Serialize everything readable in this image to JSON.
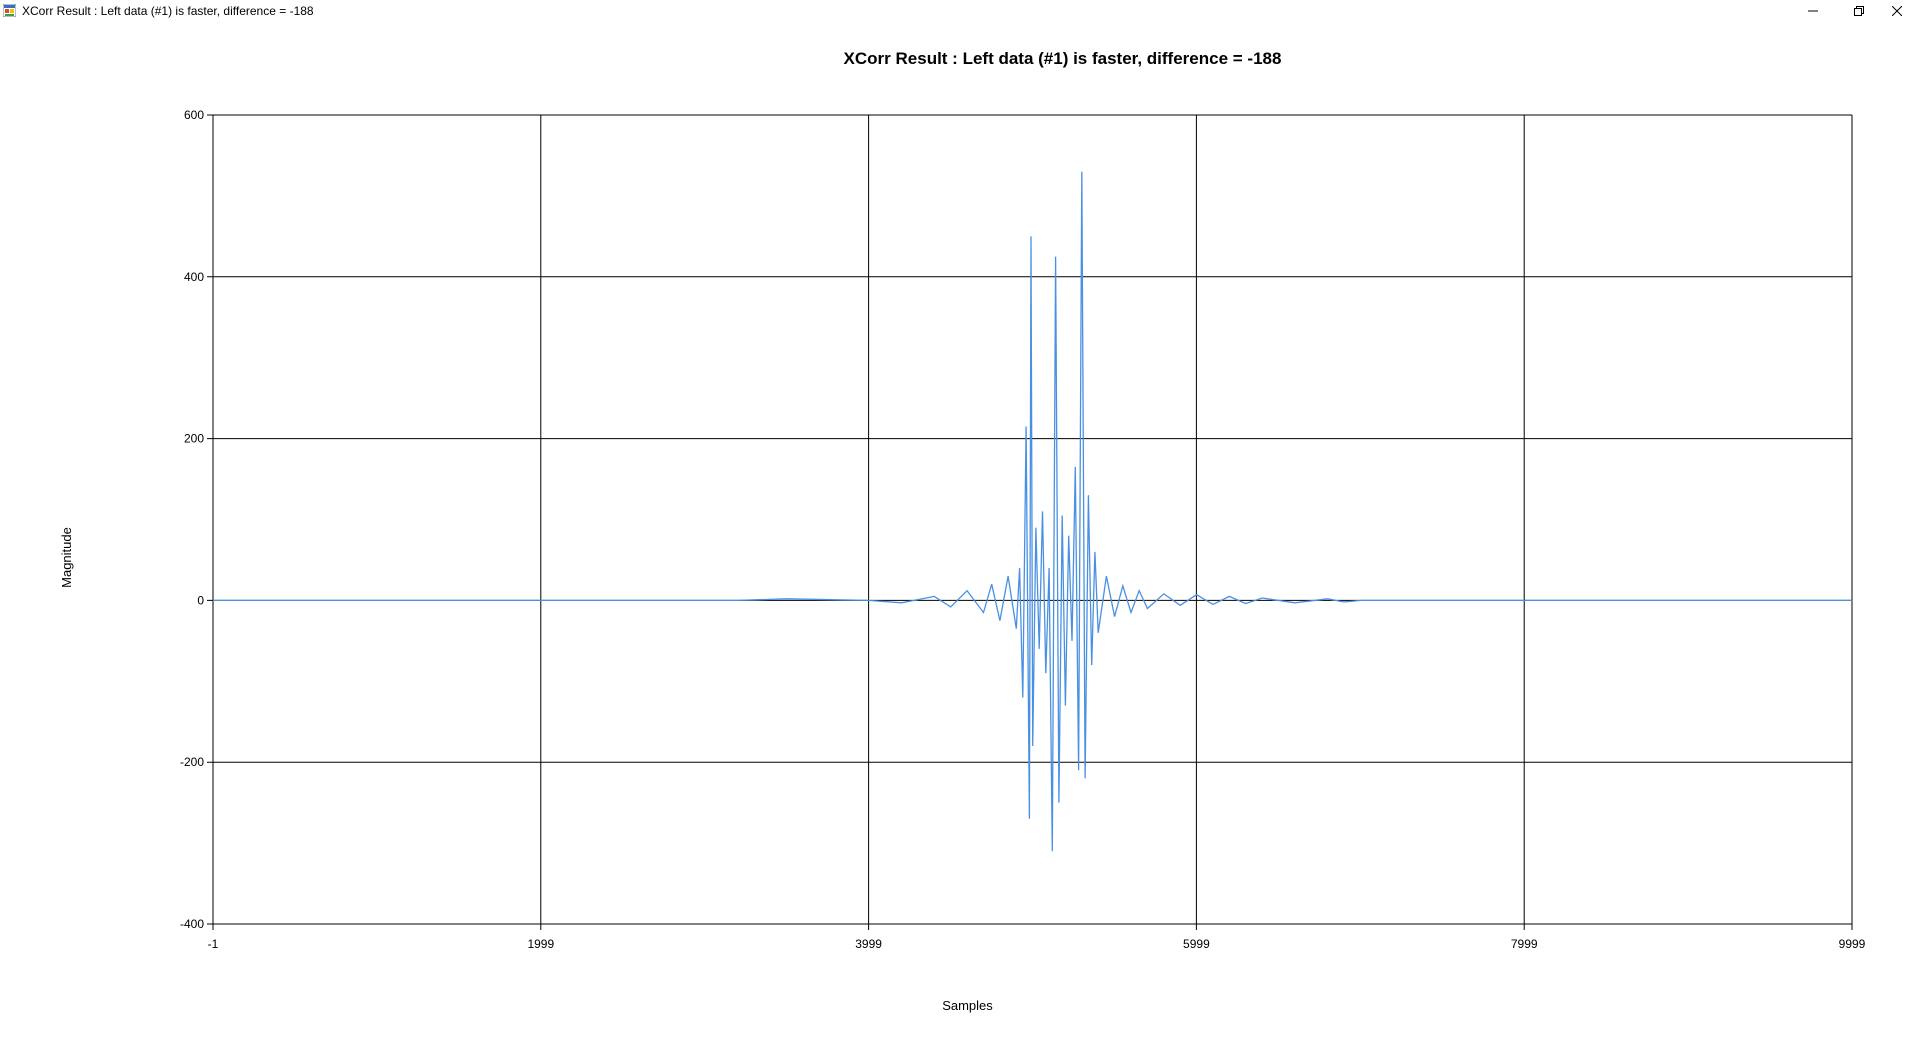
{
  "window": {
    "title": "XCorr Result : Left data (#1) is faster, difference = -188",
    "controls": [
      "minimize",
      "restore",
      "close"
    ]
  },
  "chart_data": {
    "type": "line",
    "title": "XCorr Result : Left data (#1) is faster, difference = -188",
    "xlabel": "Samples",
    "ylabel": "Magnitude",
    "xlim": [
      -1,
      9999
    ],
    "ylim": [
      -400,
      600
    ],
    "xticks": [
      -1,
      1999,
      3999,
      5999,
      7999,
      9999
    ],
    "yticks": [
      -400,
      -200,
      0,
      200,
      400,
      600
    ],
    "grid": true,
    "line_color": "#4a90e2",
    "series": [
      {
        "x": [
          -1,
          1999,
          3200,
          3500,
          3999,
          4200,
          4400,
          4500,
          4600,
          4700,
          4750,
          4800,
          4850,
          4900,
          4920,
          4940,
          4960,
          4980,
          4990,
          5000,
          5020,
          5040,
          5060,
          5080,
          5100,
          5120,
          5140,
          5160,
          5180,
          5200,
          5220,
          5240,
          5260,
          5280,
          5300,
          5320,
          5340,
          5360,
          5380,
          5400,
          5450,
          5500,
          5550,
          5600,
          5650,
          5700,
          5800,
          5900,
          6000,
          6100,
          6200,
          6300,
          6400,
          6600,
          6800,
          6900,
          7000,
          7999,
          9999
        ],
        "y": [
          0,
          0,
          0,
          2,
          0,
          -3,
          5,
          -8,
          12,
          -15,
          20,
          -25,
          30,
          -35,
          40,
          -120,
          215,
          -270,
          450,
          -180,
          90,
          -60,
          110,
          -90,
          40,
          -310,
          425,
          -250,
          105,
          -130,
          80,
          -50,
          165,
          -210,
          530,
          -220,
          130,
          -80,
          60,
          -40,
          30,
          -20,
          18,
          -15,
          12,
          -10,
          8,
          -6,
          7,
          -5,
          5,
          -4,
          3,
          -3,
          2,
          -2,
          0,
          0,
          0
        ]
      }
    ]
  }
}
